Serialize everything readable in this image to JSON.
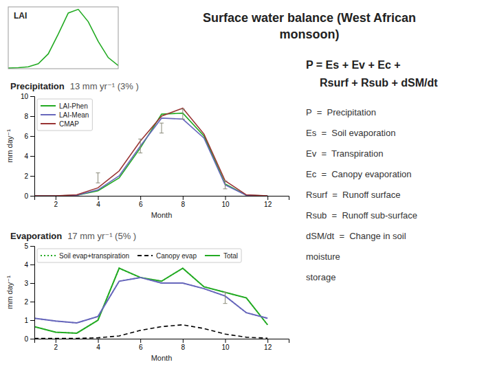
{
  "title": "Surface water balance (West African\nmonsoon)",
  "equation": [
    "P = Es + Ev + Ec +",
    "Rsurf + Rsub + dSM/dt"
  ],
  "annotations": [
    "P  =  Precipitation",
    "Es  =  Soil evaporation",
    "Ev  =  Transpiration",
    "Ec  =  Canopy evaporation",
    "Rsurf  =  Runoff surface",
    "Rsub  =  Runoff sub-surface",
    "dSM/dt  =  Change in soil",
    "moisture",
    "storage"
  ],
  "chart_data": [
    {
      "type": "line",
      "title": "LAI",
      "x": [
        1,
        2,
        3,
        4,
        5,
        6,
        7,
        8,
        9,
        10,
        11,
        12
      ],
      "series": [
        {
          "color": "#22aa22",
          "values": [
            0.05,
            0.08,
            0.15,
            0.4,
            1.2,
            2.8,
            4.5,
            4.8,
            3.8,
            2.2,
            0.9,
            0.25
          ]
        }
      ],
      "xlim": [
        1,
        12
      ],
      "ylim": [
        0,
        5
      ],
      "xticks": [],
      "yticks": [],
      "tick_labels": false,
      "grid": false
    },
    {
      "type": "line",
      "title": "Precipitation",
      "subtitle": "13 mm yr⁻¹ (3% )",
      "x_label": "Month",
      "y_label": "mm day⁻¹",
      "x": [
        1,
        2,
        3,
        4,
        5,
        6,
        7,
        8,
        9,
        10,
        11,
        12
      ],
      "series": [
        {
          "name": "LAI-Phen",
          "color": "#22aa22",
          "values": [
            0.0,
            0.0,
            0.05,
            0.5,
            1.8,
            4.8,
            8.2,
            8.3,
            6.0,
            1.2,
            0.05,
            0.0
          ]
        },
        {
          "name": "LAI-Mean",
          "color": "#6666bb",
          "values": [
            0.0,
            0.0,
            0.05,
            0.6,
            2.0,
            5.0,
            7.8,
            7.7,
            5.8,
            1.1,
            0.05,
            0.0
          ]
        },
        {
          "name": "CMAP",
          "color": "#993333",
          "values": [
            0.0,
            0.0,
            0.1,
            0.8,
            2.5,
            5.5,
            8.0,
            8.8,
            6.2,
            1.5,
            0.1,
            0.0
          ]
        },
        {
          "type": "errorbar",
          "color": "#888877",
          "x": [
            4,
            6,
            7,
            8,
            10
          ],
          "values": [
            1.8,
            5.0,
            6.8,
            8.2,
            1.1
          ],
          "errors": [
            0.5,
            0.7,
            0.5,
            0.5,
            0.4
          ]
        }
      ],
      "xlim": [
        1,
        13
      ],
      "ylim": [
        0,
        10
      ],
      "xticks": [
        2,
        4,
        6,
        8,
        10,
        12
      ],
      "yticks": [
        0,
        2,
        4,
        6,
        8,
        10
      ],
      "grid": false,
      "legend": "upper left"
    },
    {
      "type": "line",
      "title": "Evaporation",
      "subtitle": "17 mm yr⁻¹ (5% )",
      "x_label": "Month",
      "y_label": "mm day⁻¹",
      "x": [
        1,
        2,
        3,
        4,
        5,
        6,
        7,
        8,
        9,
        10,
        11,
        12
      ],
      "series": [
        {
          "name": "Soil evap+transpiration",
          "color": "#22aa22",
          "line_style": "dotted",
          "values": [
            0.65,
            0.35,
            0.3,
            1.0,
            3.8,
            3.3,
            3.1,
            3.8,
            2.8,
            2.5,
            2.2,
            0.75
          ]
        },
        {
          "color": "#6666bb",
          "line_style": "dotted",
          "values": [
            1.1,
            0.95,
            0.85,
            1.2,
            3.1,
            3.3,
            3.0,
            3.0,
            2.7,
            2.3,
            1.4,
            1.1
          ]
        },
        {
          "name": "Canopy evap",
          "color": "black",
          "line_style": "dashed",
          "values": [
            0.02,
            0.02,
            0.02,
            0.05,
            0.15,
            0.45,
            0.65,
            0.75,
            0.55,
            0.25,
            0.08,
            0.03
          ]
        },
        {
          "name": "Total",
          "color": "#22aa22",
          "line_style": "solid",
          "values": [
            0.65,
            0.35,
            0.3,
            1.0,
            3.8,
            3.3,
            3.1,
            3.8,
            2.8,
            2.5,
            2.2,
            0.75
          ]
        },
        {
          "color": "#6666bb",
          "line_style": "solid",
          "values": [
            1.1,
            0.95,
            0.85,
            1.2,
            3.1,
            3.3,
            3.0,
            3.0,
            2.7,
            2.3,
            1.4,
            1.1
          ]
        },
        {
          "type": "errorbar",
          "color": "#888877",
          "x": [
            10
          ],
          "values": [
            2.2
          ],
          "errors": [
            0.3
          ]
        }
      ],
      "xlim": [
        1,
        13
      ],
      "ylim": [
        0,
        5
      ],
      "xticks": [
        2,
        4,
        6,
        8,
        10,
        12
      ],
      "yticks": [
        0,
        1,
        2,
        3,
        4,
        5
      ],
      "grid": false,
      "legend": "upper left"
    }
  ]
}
